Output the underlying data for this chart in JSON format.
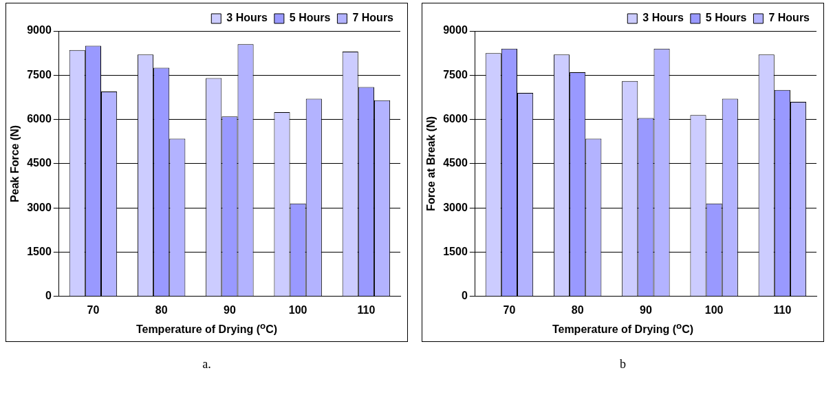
{
  "chart_data": [
    {
      "type": "bar",
      "ylabel": "Peak Force (N)",
      "xlabel": "Temperature of Drying ($^{o}$C)",
      "categories": [
        "70",
        "80",
        "90",
        "100",
        "110"
      ],
      "series": [
        {
          "name": "3 Hours",
          "color": "#ccccff",
          "values": [
            8350,
            8200,
            7400,
            6250,
            8300
          ]
        },
        {
          "name": "5 Hours",
          "color": "#9999ff",
          "values": [
            8500,
            7750,
            6100,
            3150,
            7100
          ]
        },
        {
          "name": "7 Hours",
          "color": "#b3b3ff",
          "values": [
            6950,
            5350,
            8550,
            6700,
            6650
          ]
        }
      ],
      "ylim": [
        0,
        9000
      ],
      "yticks": [
        0,
        1500,
        3000,
        4500,
        6000,
        7500,
        9000
      ],
      "grid": "y",
      "legend": "top right",
      "annotations": [
        "a."
      ]
    },
    {
      "type": "bar",
      "ylabel": "Force at Break (N)",
      "xlabel": "Temperature of Drying ($^{o}$C)",
      "categories": [
        "70",
        "80",
        "90",
        "100",
        "110"
      ],
      "series": [
        {
          "name": "3 Hours",
          "color": "#ccccff",
          "values": [
            8250,
            8200,
            7300,
            6150,
            8200
          ]
        },
        {
          "name": "5 Hours",
          "color": "#9999ff",
          "values": [
            8400,
            7600,
            6050,
            3150,
            7000
          ]
        },
        {
          "name": "7 Hours",
          "color": "#b3b3ff",
          "values": [
            6900,
            5350,
            8400,
            6700,
            6600
          ]
        }
      ],
      "ylim": [
        0,
        9000
      ],
      "yticks": [
        0,
        1500,
        3000,
        4500,
        6000,
        7500,
        9000
      ],
      "grid": "y",
      "legend": "top right",
      "annotations": [
        "b"
      ]
    }
  ]
}
